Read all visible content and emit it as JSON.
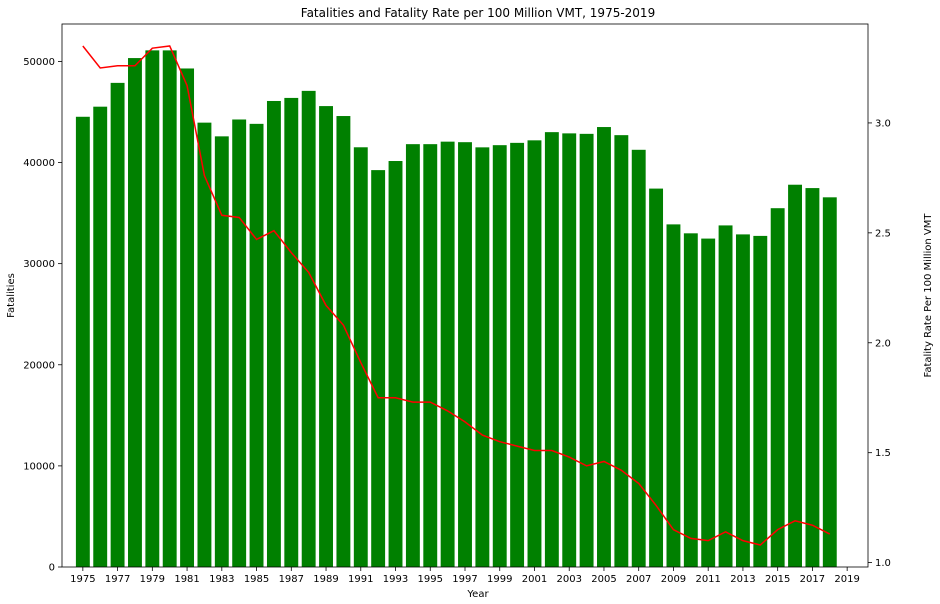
{
  "chart_data": {
    "type": "bar",
    "title": "Fatalities and Fatality Rate per 100 Million VMT, 1975-2019",
    "xlabel": "Year",
    "ylabel": "Fatalities",
    "y2label": "Fatality Rate Per 100 Million VMT",
    "x": [
      1975,
      1976,
      1977,
      1978,
      1979,
      1980,
      1981,
      1982,
      1983,
      1984,
      1985,
      1986,
      1987,
      1988,
      1989,
      1990,
      1991,
      1992,
      1993,
      1994,
      1995,
      1996,
      1997,
      1998,
      1999,
      2000,
      2001,
      2002,
      2003,
      2004,
      2005,
      2006,
      2007,
      2008,
      2009,
      2010,
      2011,
      2012,
      2013,
      2014,
      2015,
      2016,
      2017,
      2018
    ],
    "xticks": [
      1975,
      1977,
      1979,
      1981,
      1983,
      1985,
      1987,
      1989,
      1991,
      1993,
      1995,
      1997,
      1999,
      2001,
      2003,
      2005,
      2007,
      2009,
      2011,
      2013,
      2015,
      2017,
      2019
    ],
    "xlim": [
      1973.8,
      2020.2
    ],
    "ylim": [
      0,
      53700
    ],
    "yticks": [
      0,
      10000,
      20000,
      30000,
      40000,
      50000
    ],
    "y2lim": [
      0.98,
      3.45
    ],
    "y2ticks": [
      "1.0",
      "1.5",
      "2.0",
      "2.5",
      "3.0"
    ],
    "series": [
      {
        "kind": "bar",
        "axis": "left",
        "color": "#008000",
        "values": [
          44525,
          45523,
          47878,
          50331,
          51093,
          51091,
          49301,
          43945,
          42589,
          44257,
          43825,
          46087,
          46390,
          47087,
          45582,
          44599,
          41508,
          39250,
          40150,
          41817,
          41817,
          42065,
          42013,
          41501,
          41717,
          41945,
          42196,
          43005,
          42884,
          42836,
          43510,
          42708,
          41259,
          37423,
          33883,
          32999,
          32479,
          33782,
          32893,
          32744,
          35484,
          37806,
          37473,
          36560
        ]
      },
      {
        "kind": "line",
        "axis": "right",
        "color": "#ff0000",
        "values": [
          3.35,
          3.25,
          3.26,
          3.26,
          3.34,
          3.35,
          3.17,
          2.76,
          2.58,
          2.57,
          2.47,
          2.51,
          2.41,
          2.32,
          2.17,
          2.08,
          1.91,
          1.75,
          1.75,
          1.73,
          1.73,
          1.69,
          1.64,
          1.58,
          1.55,
          1.53,
          1.51,
          1.51,
          1.48,
          1.44,
          1.46,
          1.42,
          1.36,
          1.26,
          1.15,
          1.11,
          1.1,
          1.14,
          1.1,
          1.08,
          1.15,
          1.19,
          1.17,
          1.13
        ]
      }
    ]
  }
}
